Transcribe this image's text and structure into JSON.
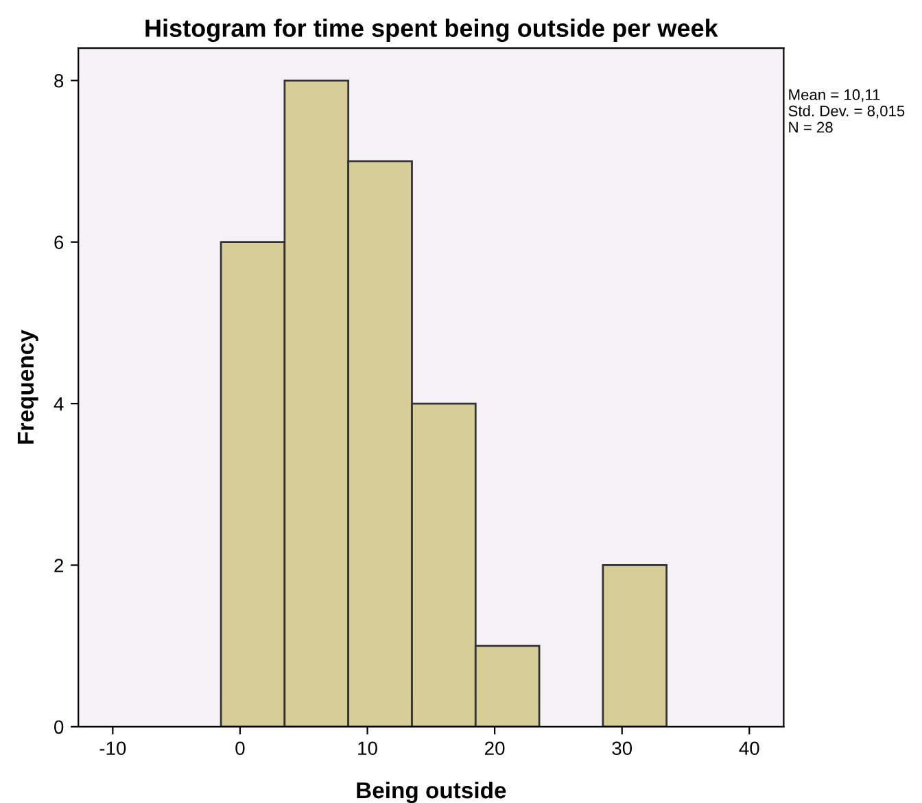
{
  "chart_data": {
    "type": "histogram",
    "title": "Histogram for time spent being outside per week",
    "xlabel": "Being outside",
    "ylabel": "Frequency",
    "bins": [
      -1.5,
      3.5,
      8.5,
      13.5,
      18.5,
      23.5,
      28.5,
      33.5
    ],
    "values": [
      6,
      8,
      7,
      4,
      1,
      0,
      2
    ],
    "color": "#d6ce96",
    "xlim": [
      -12.7,
      42.7
    ],
    "xticks": [
      -10,
      0,
      10,
      20,
      30,
      40
    ],
    "ylim": [
      0,
      8.4
    ],
    "yticks": [
      0,
      2,
      4,
      6,
      8
    ],
    "grid": false,
    "annotations": [
      "Mean = 10,11",
      "Std. Dev. = 8,015",
      "N = 28"
    ]
  }
}
